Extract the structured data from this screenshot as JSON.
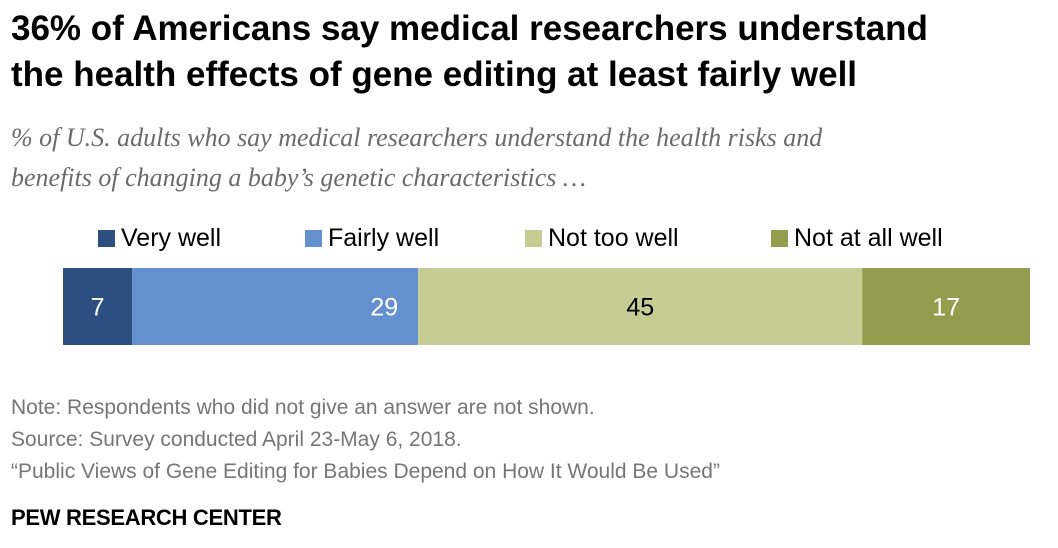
{
  "header": {
    "title_line1": "36% of Americans say medical researchers understand",
    "title_line2": "the health effects of gene editing at least fairly well",
    "subtitle_line1": "% of U.S. adults who say medical researchers understand the health risks and",
    "subtitle_line2": "benefits of changing a baby’s genetic characteristics …"
  },
  "chart_data": {
    "type": "bar",
    "orientation": "horizontal",
    "stacked": true,
    "categories": [
      ""
    ],
    "series": [
      {
        "name": "Very well",
        "values": [
          7
        ],
        "color": "#2d4f7f",
        "label_color": "#ffffff"
      },
      {
        "name": "Fairly well",
        "values": [
          29
        ],
        "color": "#6490cf",
        "label_color": "#ffffff"
      },
      {
        "name": "Not too well",
        "values": [
          45
        ],
        "color": "#c5cd95",
        "label_color": "#000000"
      },
      {
        "name": "Not at all well",
        "values": [
          17
        ],
        "color": "#949d4e",
        "label_color": "#ffffff"
      }
    ],
    "xlim": [
      0,
      98
    ],
    "legend_position": "top",
    "grid": false
  },
  "footer": {
    "note": "Note: Respondents who did not give an answer are not shown.",
    "source": "Source: Survey conducted April 23-May 6, 2018.",
    "report": "“Public Views of Gene Editing for Babies Depend on How It Would Be Used”",
    "brand": "PEW RESEARCH CENTER"
  }
}
